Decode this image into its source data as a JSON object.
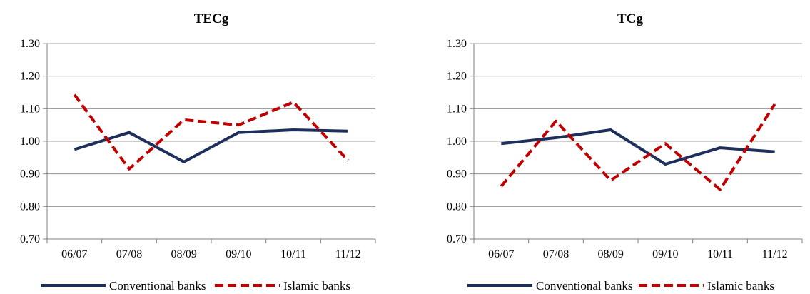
{
  "chart_data": [
    {
      "type": "line",
      "title": "TECg",
      "categories": [
        "06/07",
        "07/08",
        "08/09",
        "09/10",
        "10/11",
        "11/12"
      ],
      "ylim": [
        0.7,
        1.3
      ],
      "yticks": [
        "0.70",
        "0.80",
        "0.90",
        "1.00",
        "1.10",
        "1.20",
        "1.30"
      ],
      "grid": true,
      "legend_position": "bottom",
      "series": [
        {
          "name": "Conventional banks",
          "values": [
            0.975,
            1.027,
            0.937,
            1.027,
            1.035,
            1.031
          ],
          "color": "#1f2f5c",
          "style": "solid"
        },
        {
          "name": "Islamic banks",
          "values": [
            1.143,
            0.915,
            1.066,
            1.05,
            1.12,
            0.941
          ],
          "color": "#c00000",
          "style": "dashed"
        }
      ]
    },
    {
      "type": "line",
      "title": "TCg",
      "categories": [
        "06/07",
        "07/08",
        "08/09",
        "09/10",
        "10/11",
        "11/12"
      ],
      "ylim": [
        0.7,
        1.3
      ],
      "yticks": [
        "0.70",
        "0.80",
        "0.90",
        "1.00",
        "1.10",
        "1.20",
        "1.30"
      ],
      "grid": true,
      "legend_position": "bottom",
      "series": [
        {
          "name": "Conventional banks",
          "values": [
            0.993,
            1.011,
            1.035,
            0.93,
            0.98,
            0.968
          ],
          "color": "#1f2f5c",
          "style": "solid"
        },
        {
          "name": "Islamic banks",
          "values": [
            0.862,
            1.062,
            0.88,
            0.993,
            0.852,
            1.114
          ],
          "color": "#c00000",
          "style": "dashed"
        }
      ]
    }
  ]
}
